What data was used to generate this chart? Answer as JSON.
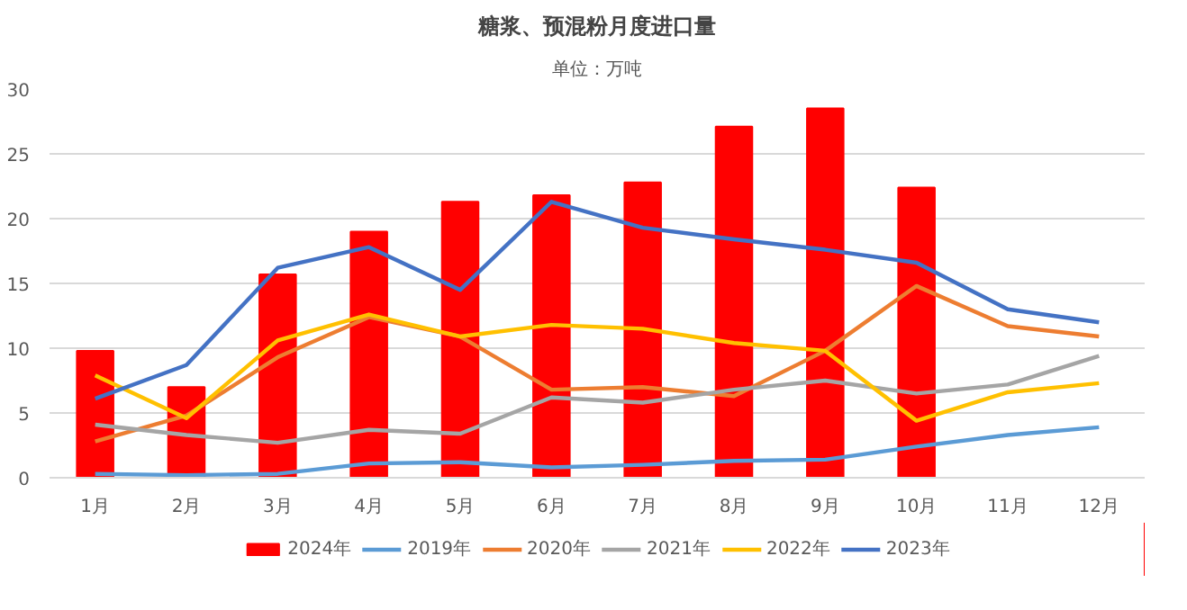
{
  "chart_data": {
    "type": "bar",
    "title": "糖浆、预混粉月度进口量",
    "subtitle": "单位：万吨",
    "categories": [
      "1月",
      "2月",
      "3月",
      "4月",
      "5月",
      "6月",
      "7月",
      "8月",
      "9月",
      "10月",
      "11月",
      "12月"
    ],
    "series": [
      {
        "name": "2024年",
        "color": "#ff0000",
        "values": [
          9.8,
          7.0,
          15.7,
          19.0,
          21.3,
          21.8,
          22.8,
          27.1,
          28.5,
          22.4,
          null,
          null
        ]
      },
      {
        "name": "2019年",
        "type": "line",
        "color": "#5b9bd5",
        "values": [
          0.3,
          0.2,
          0.3,
          1.1,
          1.2,
          0.8,
          1.0,
          1.3,
          1.4,
          2.4,
          3.3,
          3.9
        ]
      },
      {
        "name": "2020年",
        "type": "line",
        "color": "#ed7d31",
        "values": [
          2.8,
          4.8,
          9.3,
          12.4,
          10.9,
          6.8,
          7.0,
          6.3,
          9.8,
          14.8,
          11.7,
          10.9
        ]
      },
      {
        "name": "2021年",
        "type": "line",
        "color": "#a5a5a5",
        "values": [
          4.1,
          3.3,
          2.7,
          3.7,
          3.4,
          6.2,
          5.8,
          6.8,
          7.5,
          6.5,
          7.2,
          9.4
        ]
      },
      {
        "name": "2022年",
        "type": "line",
        "color": "#ffc000",
        "values": [
          7.9,
          4.6,
          10.6,
          12.6,
          10.9,
          11.8,
          11.5,
          10.4,
          9.8,
          4.4,
          6.6,
          7.3
        ]
      },
      {
        "name": "2023年",
        "type": "line",
        "color": "#4472c4",
        "values": [
          6.1,
          8.7,
          16.2,
          17.8,
          14.5,
          21.3,
          19.3,
          18.4,
          17.6,
          16.6,
          13.0,
          12.0
        ]
      }
    ],
    "ylim": [
      0,
      30
    ],
    "yticks": [
      0,
      5,
      10,
      15,
      20,
      25,
      30
    ],
    "grid": "y",
    "legend": "bottom",
    "line_style": "solid",
    "marker": "none"
  }
}
